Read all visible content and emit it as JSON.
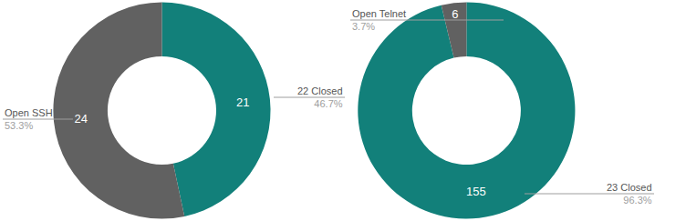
{
  "chart_data": [
    {
      "type": "donut",
      "categories": [
        "22 Closed",
        "Open SSH"
      ],
      "values": [
        21,
        24
      ],
      "percent_labels": [
        "46.7%",
        "53.3%"
      ],
      "colors": [
        "#12807a",
        "#616161"
      ],
      "data_labels": true
    },
    {
      "type": "donut",
      "categories": [
        "23 Closed",
        "Open Telnet"
      ],
      "values": [
        155,
        6
      ],
      "percent_labels": [
        "96.3%",
        "3.7%"
      ],
      "colors": [
        "#12807a",
        "#616161"
      ],
      "data_labels": true
    }
  ]
}
